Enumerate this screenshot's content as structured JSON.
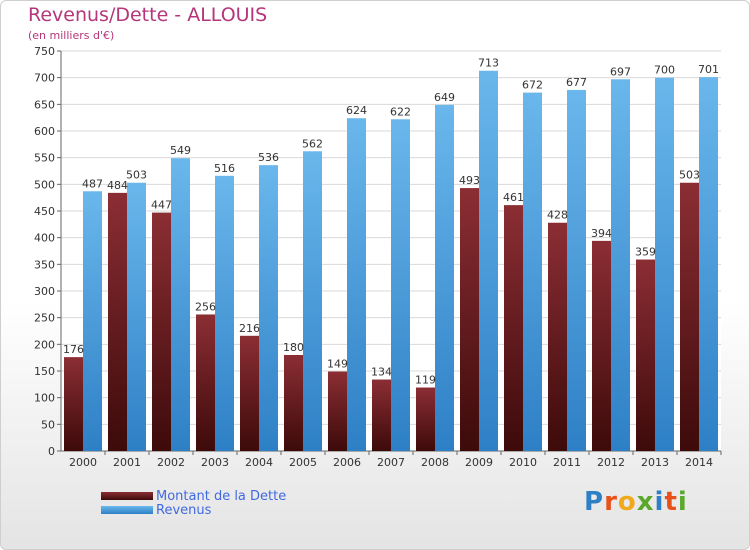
{
  "title": "Revenus/Dette - ALLOUIS",
  "subtitle": "(en milliers d'€)",
  "logo_text": "Proxiti",
  "colors": {
    "debt_top": "#8b2e34",
    "debt_bottom": "#3d0a0a",
    "revenue_top": "#6ab7ec",
    "revenue_bottom": "#2e80c6",
    "title": "#b5367a",
    "legend_text": "#4169e1"
  },
  "chart_data": {
    "type": "bar",
    "categories": [
      "2000",
      "2001",
      "2002",
      "2003",
      "2004",
      "2005",
      "2006",
      "2007",
      "2008",
      "2009",
      "2010",
      "2011",
      "2012",
      "2013",
      "2014"
    ],
    "series": [
      {
        "name": "Montant de la Dette",
        "values": [
          176,
          484,
          447,
          256,
          216,
          180,
          149,
          134,
          119,
          493,
          461,
          428,
          394,
          359,
          503
        ]
      },
      {
        "name": "Revenus",
        "values": [
          487,
          503,
          549,
          516,
          536,
          562,
          624,
          622,
          649,
          713,
          672,
          677,
          697,
          700,
          701
        ]
      }
    ],
    "ylim": [
      0,
      750
    ],
    "yticks": [
      0,
      50,
      100,
      150,
      200,
      250,
      300,
      350,
      400,
      450,
      500,
      550,
      600,
      650,
      700,
      750
    ],
    "grid": true,
    "legend": "bottom-left"
  }
}
